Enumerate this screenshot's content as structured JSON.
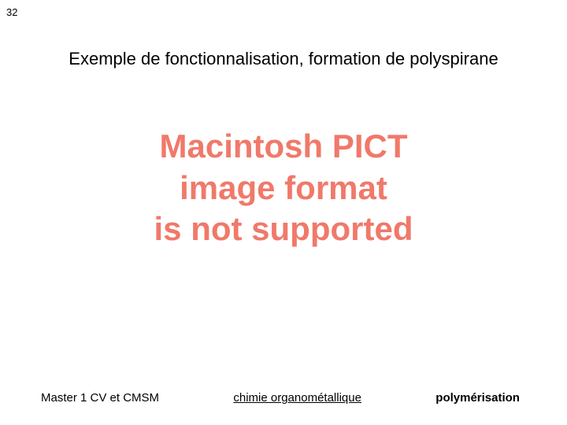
{
  "slide": {
    "number": "32",
    "title": "Exemple de fonctionnalisation, formation de polyspirane",
    "placeholder": {
      "line1": "Macintosh PICT",
      "line2": "image format",
      "line3": "is not supported",
      "color": "#f0796a",
      "fontsize": 42,
      "fontweight": 700
    },
    "footer": {
      "left": "Master 1 CV et CMSM",
      "center": "chimie organométallique",
      "right": "polymérisation"
    },
    "background_color": "#ffffff",
    "title_color": "#000000",
    "title_fontsize": 22,
    "slide_number_fontsize": 13,
    "footer_fontsize": 15
  }
}
